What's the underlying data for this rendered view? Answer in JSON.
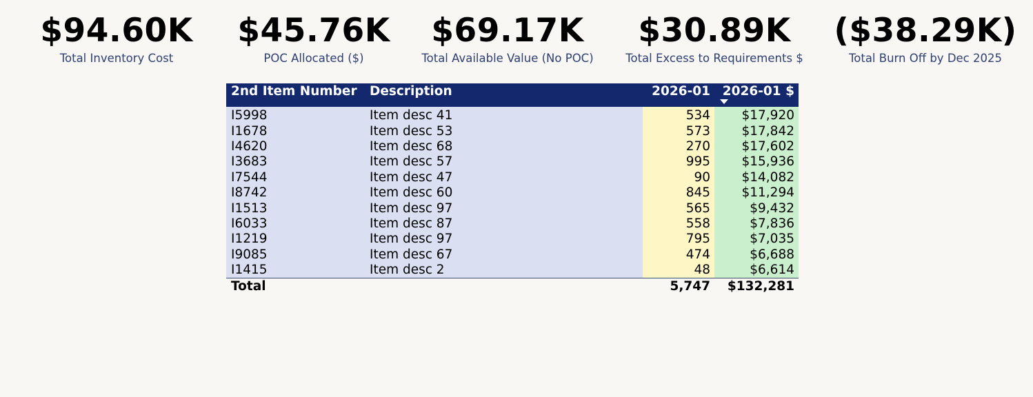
{
  "kpis": [
    {
      "value": "$94.60K",
      "label": "Total Inventory Cost"
    },
    {
      "value": "$45.76K",
      "label": "POC Allocated ($)"
    },
    {
      "value": "$69.17K",
      "label": "Total Available Value (No POC)"
    },
    {
      "value": "$30.89K",
      "label": "Total Excess to Requirements $"
    },
    {
      "value": "($38.29K)",
      "label": "Total Burn Off by Dec 2025"
    }
  ],
  "table": {
    "headers": {
      "item": "2nd Item Number",
      "desc": "Description",
      "qty": "2026-01",
      "val": "2026-01 $"
    },
    "sort_icon": "sort-descending-icon",
    "rows": [
      {
        "item": "I5998",
        "desc": "Item desc 41",
        "qty": "534",
        "val": "$17,920"
      },
      {
        "item": "I1678",
        "desc": "Item desc 53",
        "qty": "573",
        "val": "$17,842"
      },
      {
        "item": "I4620",
        "desc": "Item desc 68",
        "qty": "270",
        "val": "$17,602"
      },
      {
        "item": "I3683",
        "desc": "Item desc 57",
        "qty": "995",
        "val": "$15,936"
      },
      {
        "item": "I7544",
        "desc": "Item desc 47",
        "qty": "90",
        "val": "$14,082"
      },
      {
        "item": "I8742",
        "desc": "Item desc 60",
        "qty": "845",
        "val": "$11,294"
      },
      {
        "item": "I1513",
        "desc": "Item desc 97",
        "qty": "565",
        "val": "$9,432"
      },
      {
        "item": "I6033",
        "desc": "Item desc 87",
        "qty": "558",
        "val": "$7,836"
      },
      {
        "item": "I1219",
        "desc": "Item desc 97",
        "qty": "795",
        "val": "$7,035"
      },
      {
        "item": "I9085",
        "desc": "Item desc 67",
        "qty": "474",
        "val": "$6,688"
      },
      {
        "item": "I1415",
        "desc": "Item desc 2",
        "qty": "48",
        "val": "$6,614"
      }
    ],
    "total": {
      "label": "Total",
      "qty": "5,747",
      "val": "$132,281"
    }
  },
  "colors": {
    "header_bg": "#14286e",
    "item_col_bg": "#dae0f2",
    "qty_col_bg": "#fef7c5",
    "val_col_bg": "#c9efcc",
    "kpi_label": "#2e3f72"
  }
}
